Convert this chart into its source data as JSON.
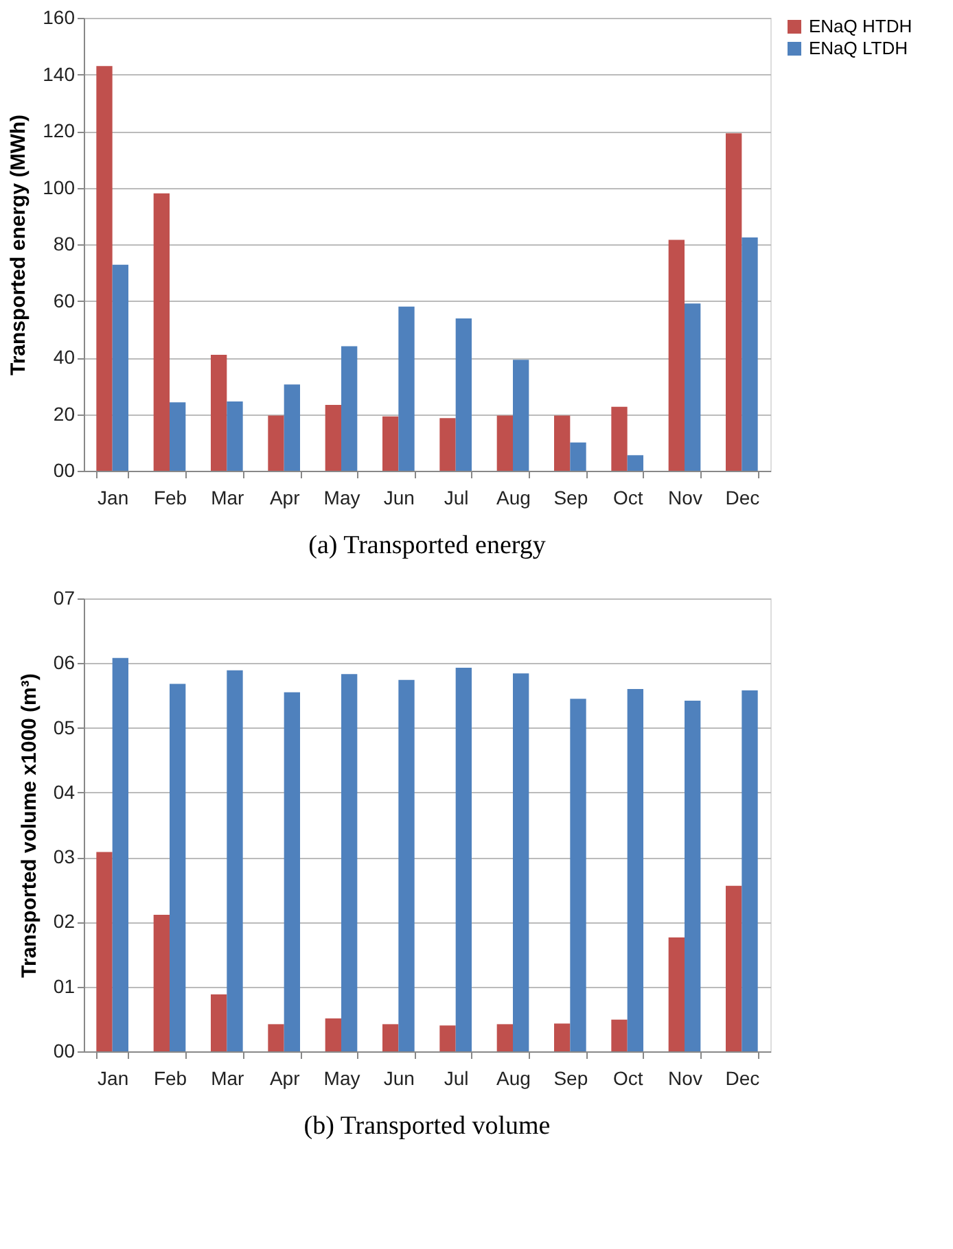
{
  "chart_data": [
    {
      "type": "bar",
      "title": "(a) Transported energy",
      "ylabel": "Transported energy (MWh)",
      "categories": [
        "Jan",
        "Feb",
        "Mar",
        "Apr",
        "May",
        "Jun",
        "Jul",
        "Aug",
        "Sep",
        "Oct",
        "Nov",
        "Dec"
      ],
      "series": [
        {
          "name": "ENaQ HTDH",
          "color": "#c0504d",
          "values": [
            143,
            98,
            41,
            19.5,
            23.3,
            19.2,
            18.6,
            19.5,
            19.5,
            22.6,
            81.6,
            119.2
          ]
        },
        {
          "name": "ENaQ LTDH",
          "color": "#4f81bd",
          "values": [
            72.8,
            24.2,
            24.5,
            30.5,
            44,
            58,
            53.8,
            39.2,
            10,
            5.5,
            59.1,
            82.4
          ]
        }
      ],
      "ylim": [
        0,
        160
      ],
      "yticks": [
        {
          "value": 0,
          "label": "00"
        },
        20,
        40,
        60,
        80,
        100,
        120,
        140,
        160
      ],
      "grid": "y",
      "legend": "right"
    },
    {
      "type": "bar",
      "title": "(b) Transported volume",
      "ylabel": "Transported volume  x1000 (m³)",
      "categories": [
        "Jan",
        "Feb",
        "Mar",
        "Apr",
        "May",
        "Jun",
        "Jul",
        "Aug",
        "Sep",
        "Oct",
        "Nov",
        "Dec"
      ],
      "series": [
        {
          "name": "ENaQ HTDH",
          "color": "#c0504d",
          "values": [
            3.08,
            2.11,
            0.88,
            0.42,
            0.51,
            0.42,
            0.4,
            0.42,
            0.43,
            0.49,
            1.76,
            2.56
          ]
        },
        {
          "name": "ENaQ LTDH",
          "color": "#4f81bd",
          "values": [
            6.08,
            5.68,
            5.89,
            5.55,
            5.83,
            5.74,
            5.93,
            5.84,
            5.45,
            5.6,
            5.42,
            5.58
          ]
        }
      ],
      "ylim": [
        0,
        7
      ],
      "yticks": [
        {
          "value": 0,
          "label": "00"
        },
        {
          "value": 1,
          "label": "01"
        },
        {
          "value": 2,
          "label": "02"
        },
        {
          "value": 3,
          "label": "03"
        },
        {
          "value": 4,
          "label": "04"
        },
        {
          "value": 5,
          "label": "05"
        },
        {
          "value": 6,
          "label": "06"
        },
        {
          "value": 7,
          "label": "07"
        }
      ],
      "grid": "y",
      "legend": "right"
    }
  ]
}
